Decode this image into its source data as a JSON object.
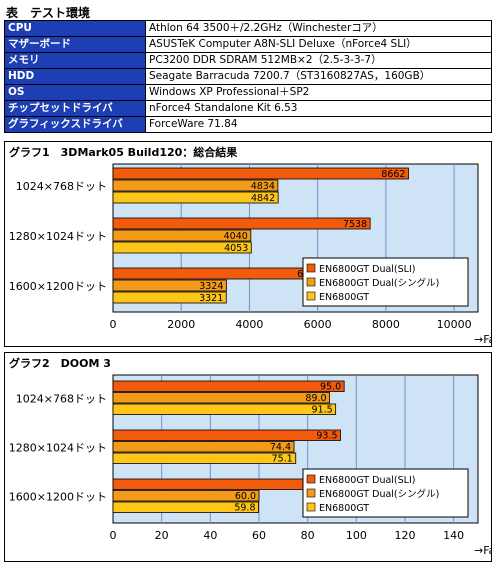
{
  "page_title": "表　テスト環境",
  "spec_table": [
    {
      "key": "CPU",
      "value": "Athlon 64 3500＋/2.2GHz（Winchesterコア）"
    },
    {
      "key": "マザーボード",
      "value": "ASUSTeK Computer A8N-SLI Deluxe（nForce4 SLI）"
    },
    {
      "key": "メモリ",
      "value": "PC3200 DDR SDRAM 512MB×2（2.5-3-3-7）"
    },
    {
      "key": "HDD",
      "value": "Seagate Barracuda 7200.7（ST3160827AS，160GB）"
    },
    {
      "key": "OS",
      "value": "Windows XP Professional＋SP2"
    },
    {
      "key": "チップセットドライバ",
      "value": "nForce4 Standalone Kit 6.53"
    },
    {
      "key": "グラフィックスドライバ",
      "value": "ForceWare 71.84"
    }
  ],
  "colors": {
    "spec_key_bg": "#1e3fb4",
    "plot_bg": "#cfe3f6",
    "grid": "#6f93c8",
    "series": [
      "#f25a0c",
      "#f39a18",
      "#ffc61a"
    ]
  },
  "chart_data": [
    {
      "type": "bar",
      "orientation": "horizontal",
      "title": "グラフ1　3DMark05 Build120：総合結果",
      "categories": [
        "1024×768ドット",
        "1280×1024ドット",
        "1600×1200ドット"
      ],
      "series": [
        {
          "name": "EN6800GT Dual(SLI)",
          "values": [
            8662,
            7538,
            6196
          ]
        },
        {
          "name": "EN6800GT Dual(シングル)",
          "values": [
            4834,
            4040,
            3324
          ]
        },
        {
          "name": "EN6800GT",
          "values": [
            4842,
            4053,
            3321
          ]
        }
      ],
      "xlim": [
        0,
        10700
      ],
      "xticks": [
        0,
        2000,
        4000,
        6000,
        8000,
        10000
      ],
      "xlabel": "→Fast",
      "value_format": 0,
      "legend": "bottom-right",
      "grid": true
    },
    {
      "type": "bar",
      "orientation": "horizontal",
      "title": "グラフ2　DOOM 3",
      "categories": [
        "1024×768ドット",
        "1280×1024ドット",
        "1600×1200ドット"
      ],
      "series": [
        {
          "name": "EN6800GT Dual(SLI)",
          "values": [
            95.0,
            93.5,
            87.5
          ]
        },
        {
          "name": "EN6800GT Dual(シングル)",
          "values": [
            89.0,
            74.4,
            60.0
          ]
        },
        {
          "name": "EN6800GT",
          "values": [
            91.5,
            75.1,
            59.8
          ]
        }
      ],
      "xlim": [
        0,
        150
      ],
      "xticks": [
        0,
        20,
        40,
        60,
        80,
        100,
        120,
        140
      ],
      "xlabel": "→Fast（fps）",
      "value_format": 1,
      "legend": "bottom-right",
      "grid": true
    }
  ]
}
